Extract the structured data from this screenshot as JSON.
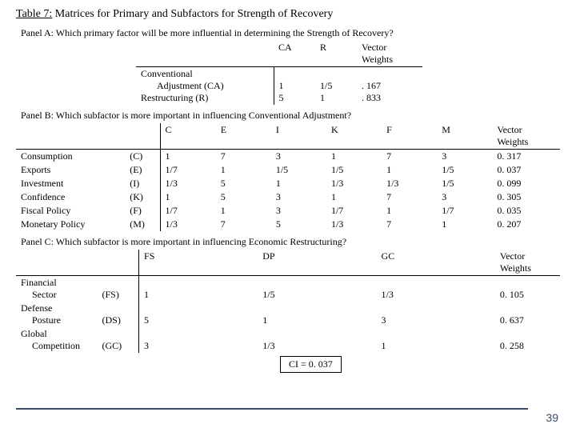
{
  "title_prefix": "Table 7:",
  "title_rest": " Matrices for Primary and Subfactors for Strength of Recovery",
  "panelA": {
    "label": "Panel A: Which primary factor will be more influential in determining the Strength of Recovery?",
    "cols": {
      "CA": "CA",
      "R": "R",
      "VW": "Vector Weights"
    },
    "rows": [
      {
        "name": "Conventional",
        "sub": "Adjustment (CA)",
        "CA": "1",
        "R": "1/5",
        "VW": ". 167"
      },
      {
        "name": "Restructuring (R)",
        "sub": "",
        "CA": "5",
        "R": "1",
        "VW": ". 833"
      }
    ]
  },
  "panelB": {
    "label": "Panel B: Which subfactor is more important in influencing Conventional Adjustment?",
    "cols": [
      "C",
      "E",
      "I",
      "K",
      "F",
      "M"
    ],
    "vw": "Vector Weights",
    "rows": [
      {
        "name": "Consumption",
        "abbr": "(C)",
        "v": [
          "1",
          "7",
          "3",
          "1",
          "7",
          "3"
        ],
        "vw": "0. 317"
      },
      {
        "name": "Exports",
        "abbr": "(E)",
        "v": [
          "1/7",
          "1",
          "1/5",
          "1/5",
          "1",
          "1/5"
        ],
        "vw": "0. 037"
      },
      {
        "name": "Investment",
        "abbr": "(I)",
        "v": [
          "1/3",
          "5",
          "1",
          "1/3",
          "1/3",
          "1/5"
        ],
        "vw": "0. 099"
      },
      {
        "name": "Confidence",
        "abbr": "(K)",
        "v": [
          "1",
          "5",
          "3",
          "1",
          "7",
          "3"
        ],
        "vw": "0. 305"
      },
      {
        "name": "Fiscal Policy",
        "abbr": "(F)",
        "v": [
          "1/7",
          "1",
          "3",
          "1/7",
          "1",
          "1/7"
        ],
        "vw": "0. 035"
      },
      {
        "name": "Monetary Policy",
        "abbr": "(M)",
        "v": [
          "1/3",
          "7",
          "5",
          "1/3",
          "7",
          "1"
        ],
        "vw": "0. 207"
      }
    ]
  },
  "panelC": {
    "label": "Panel C: Which subfactor is more important in influencing Economic Restructuring?",
    "cols": [
      "FS",
      "DP",
      "GC"
    ],
    "vw": "Vector Weights",
    "rows": [
      {
        "name": "Financial",
        "sub": "Sector",
        "abbr": "(FS)",
        "v": [
          "1",
          "1/5",
          "1/3"
        ],
        "vw": "0. 105"
      },
      {
        "name": "Defense",
        "sub": "Posture",
        "abbr": "(DS)",
        "v": [
          "5",
          "1",
          "3"
        ],
        "vw": "0. 637"
      },
      {
        "name": "Global",
        "sub": "Competition",
        "abbr": "(GC)",
        "v": [
          "3",
          "1/3",
          "1"
        ],
        "vw": "0. 258"
      }
    ],
    "ci": "CI = 0. 037"
  },
  "slidenum": "39"
}
